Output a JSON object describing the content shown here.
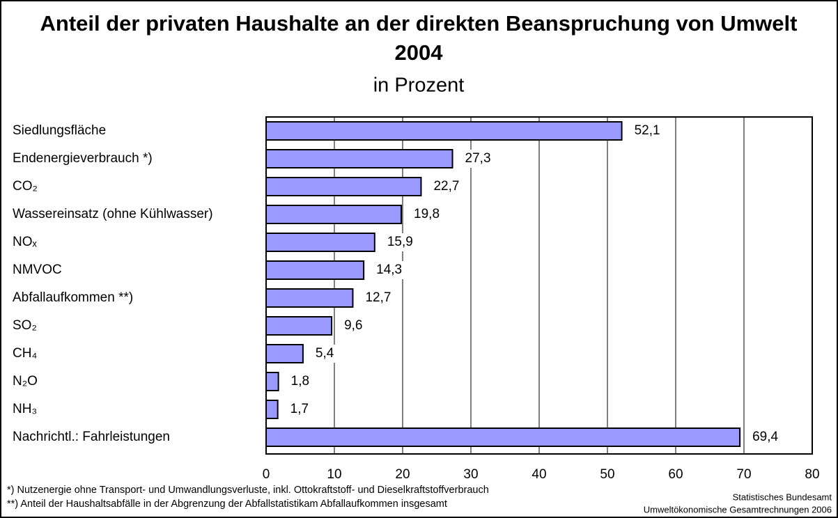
{
  "chart_data": {
    "type": "bar",
    "orientation": "horizontal",
    "title": "Anteil der privaten Haushalte an der direkten Beanspruchung von Umwelt 2004",
    "subtitle": "in Prozent",
    "categories": [
      "Siedlungsfläche",
      "Endenergieverbrauch *)",
      "CO₂",
      "Wassereinsatz (ohne Kühlwasser)",
      "NOₓ",
      "NMVOC",
      "Abfallaufkommen **)",
      "SO₂",
      "CH₄",
      "N₂O",
      "NH₃",
      "Nachrichtl.: Fahrleistungen"
    ],
    "values": [
      52.1,
      27.3,
      22.7,
      19.8,
      15.9,
      14.3,
      12.7,
      9.6,
      5.4,
      1.8,
      1.7,
      69.4
    ],
    "value_labels": [
      "52,1",
      "27,3",
      "22,7",
      "19,8",
      "15,9",
      "14,3",
      "12,7",
      "9,6",
      "5,4",
      "1,8",
      "1,7",
      "69,4"
    ],
    "color": "#9999ff",
    "xlim": [
      0,
      80
    ],
    "xticks": [
      0,
      10,
      20,
      30,
      40,
      50,
      60,
      70,
      80
    ],
    "grid": true,
    "footnotes": [
      "*) Nutzenergie ohne Transport- und Umwandlungsverluste, inkl. Ottokraftstoff- und Dieselkraftstoffverbrauch",
      "**)  Anteil der Haushaltsabfälle in der Abgrenzung der Abfallstatistikam Abfallaufkommen insgesamt"
    ],
    "source": [
      "Statistisches Bundesamt",
      "Umweltökonomische Gesamtrechnungen 2006"
    ]
  }
}
